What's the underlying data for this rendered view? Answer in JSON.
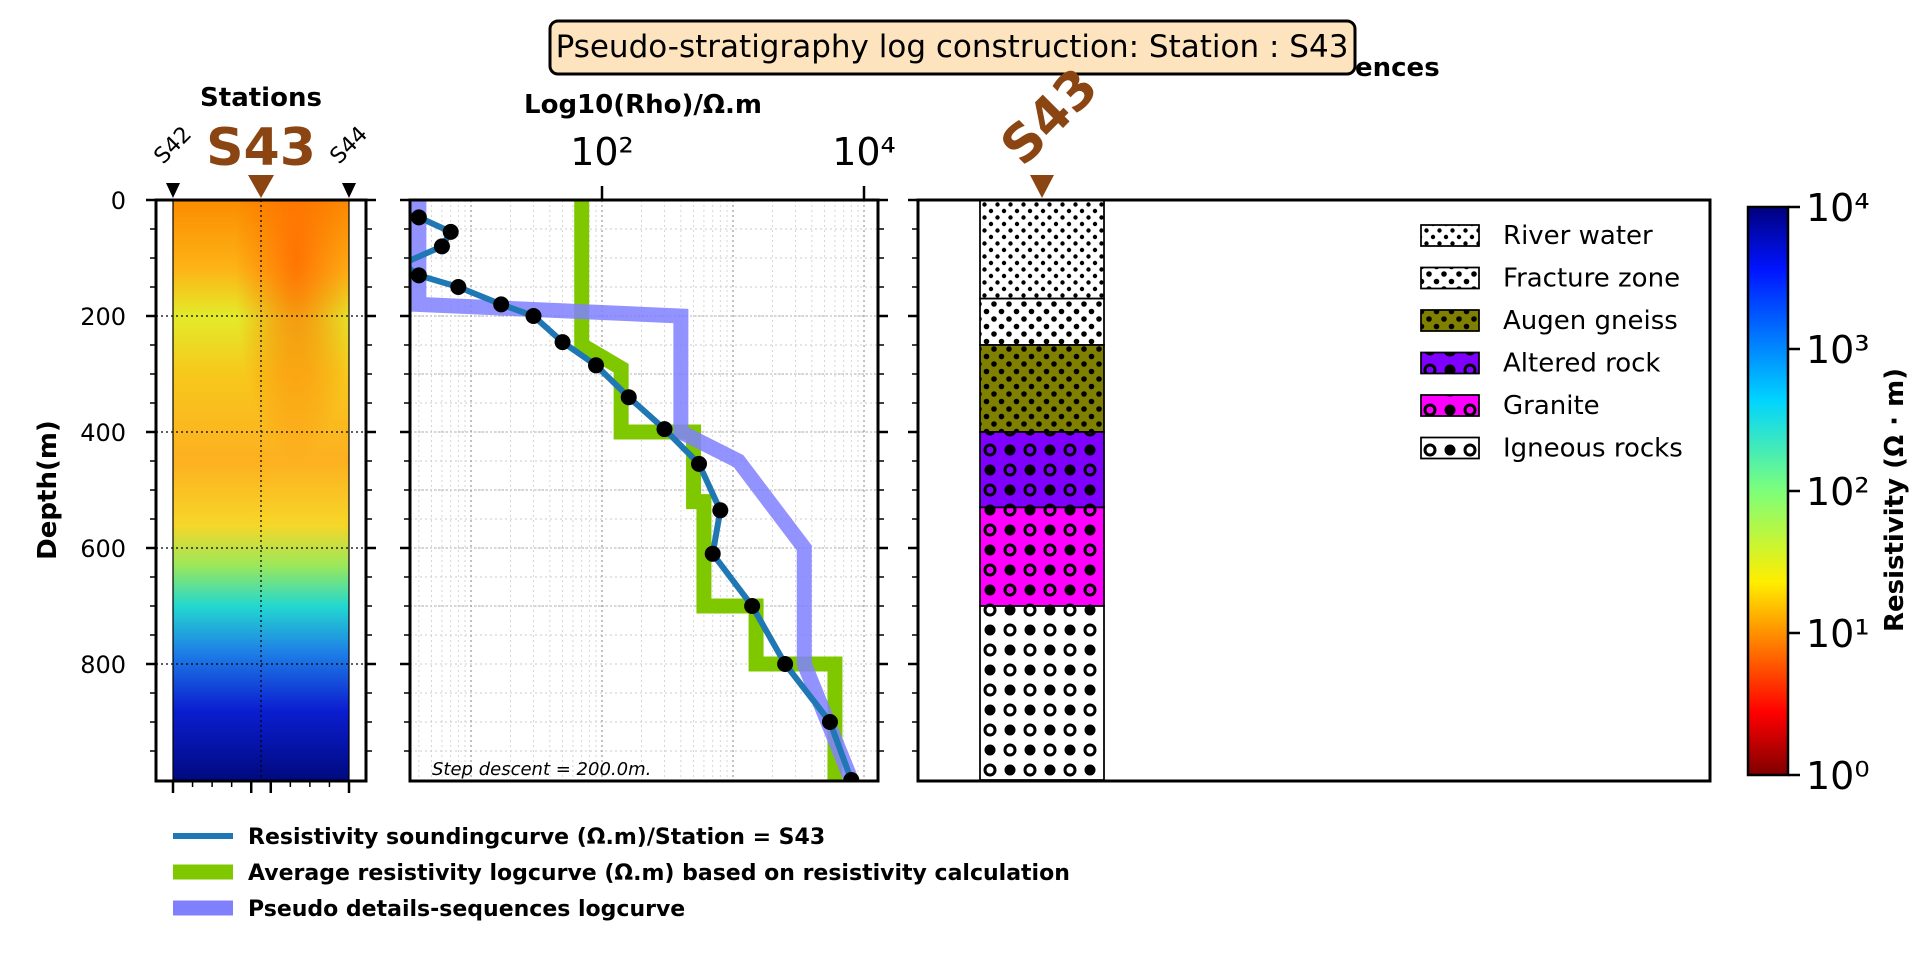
{
  "figure": {
    "title": "Pseudo-stratigraphy log construction: Station : S43",
    "seq_header_tail": "ences"
  },
  "stations_panel": {
    "title": "Stations",
    "current_station": "S43",
    "prev_station": "S42",
    "next_station": "S44",
    "ylabel": "Depth(m)",
    "depth_ticks": [
      "0",
      "200",
      "400",
      "600",
      "800"
    ]
  },
  "log_panel": {
    "xlabel": "Log10(Rho)/Ω.m",
    "note": "Step descent = 200.0m."
  },
  "seq_panel": {
    "station_label": "S43",
    "layers": [
      {
        "name": "River water",
        "top": 0,
        "bottom": 170,
        "color": "#ffffff",
        "pattern": "dots-small"
      },
      {
        "name": "Fracture zone",
        "top": 170,
        "bottom": 250,
        "color": "#ffffff",
        "pattern": "dots-medium"
      },
      {
        "name": "Augen gneiss",
        "top": 250,
        "bottom": 400,
        "color": "#808000",
        "pattern": "dots-medium"
      },
      {
        "name": "Altered rock",
        "top": 400,
        "bottom": 530,
        "color": "#7f00ff",
        "pattern": "circles"
      },
      {
        "name": "Granite",
        "top": 530,
        "bottom": 700,
        "color": "#ff00ff",
        "pattern": "circles"
      },
      {
        "name": "Igneous rocks",
        "top": 700,
        "bottom": 1000,
        "color": "#ffffff",
        "pattern": "circles"
      }
    ],
    "legend": [
      "River water",
      "Fracture zone",
      "Augen gneiss",
      "Altered rock",
      "Granite",
      "Igneous rocks"
    ]
  },
  "colorbar": {
    "label": "Resistivity (Ω · m)",
    "ticks": [
      "10⁰",
      "10¹",
      "10²",
      "10³",
      "10⁴"
    ]
  },
  "legend": {
    "items": [
      {
        "label": "Resistivity soundingcurve (Ω.m)/Station = S43",
        "color": "#1f77b4"
      },
      {
        "label": "Average resistivity logcurve (Ω.m) based on resistivity calculation",
        "color": "#7fc800"
      },
      {
        "label": " Pseudo details-sequences logcurve",
        "color": "#8080ff"
      }
    ]
  },
  "chart_data": {
    "type": "line",
    "xscale": "log",
    "xlim": [
      1,
      10000
    ],
    "ylim": [
      0,
      1000
    ],
    "yinverted": true,
    "xtick_labels": [
      "10²",
      "10⁴"
    ],
    "series": [
      {
        "name": "Resistivity soundingcurve (Ω.m)/Station = S43",
        "depth": [
          0,
          30,
          55,
          80,
          110,
          130,
          150,
          180,
          200,
          245,
          285,
          340,
          395,
          455,
          535,
          610,
          700,
          800,
          900,
          1000
        ],
        "rho": [
          1.2,
          4,
          7,
          6,
          3,
          4,
          8,
          17,
          30,
          50,
          90,
          160,
          300,
          550,
          800,
          700,
          1400,
          2500,
          5500,
          8000
        ]
      },
      {
        "name": "Average resistivity logcurve (Ω.m) based on resistivity calculation",
        "depth": [
          0,
          250,
          250,
          290,
          290,
          400,
          400,
          520,
          520,
          700,
          700,
          800,
          800,
          1000
        ],
        "rho": [
          70,
          70,
          70,
          140,
          140,
          140,
          500,
          500,
          600,
          600,
          1500,
          1500,
          6000,
          6000
        ]
      },
      {
        "name": " Pseudo details-sequences logcurve",
        "depth": [
          0,
          180,
          180,
          200,
          200,
          400,
          400,
          450,
          450,
          600,
          600,
          800,
          800,
          1000
        ],
        "rho": [
          4,
          4,
          4,
          400,
          400,
          400,
          400,
          1100,
          1100,
          3500,
          3500,
          3500,
          3500,
          8000
        ]
      }
    ]
  }
}
